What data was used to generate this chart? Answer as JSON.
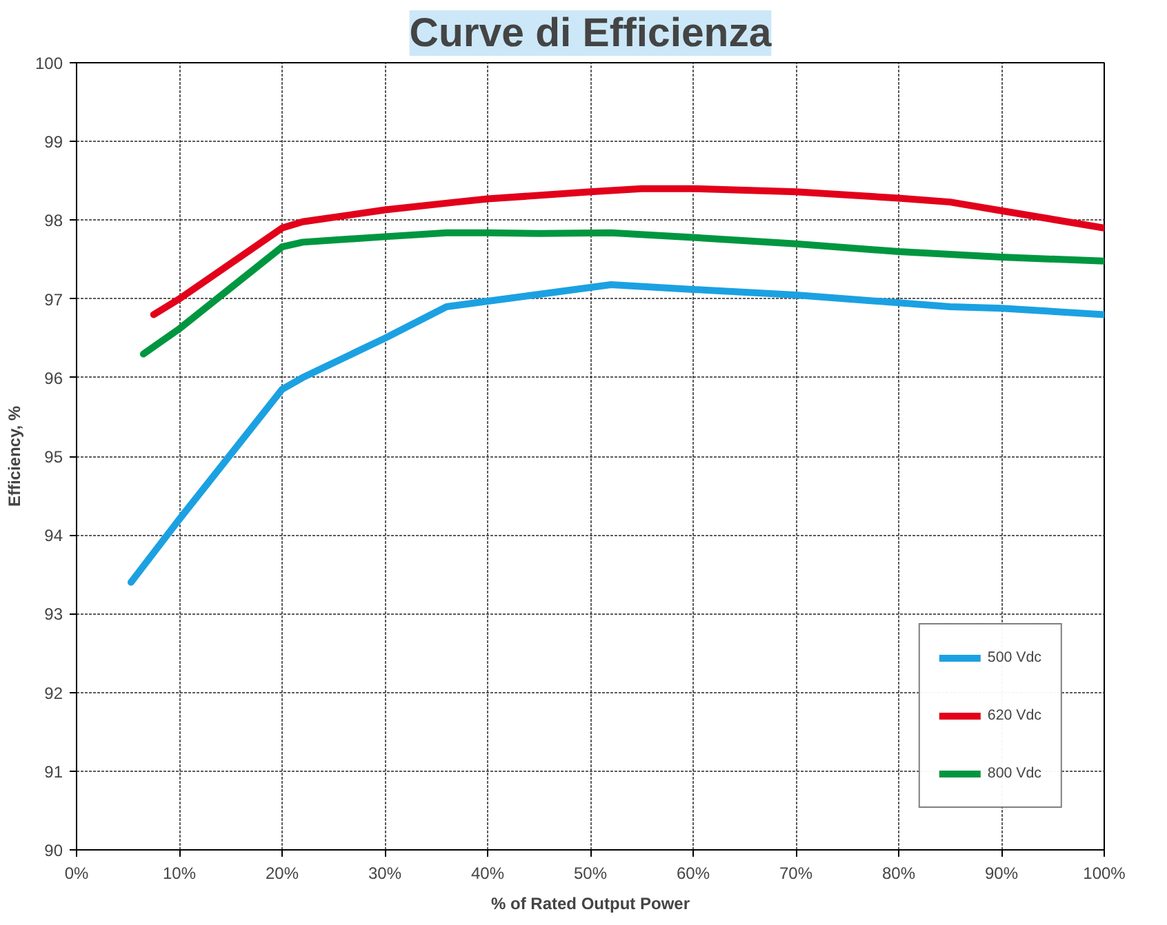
{
  "chart_data": {
    "type": "line",
    "title": "Curve di Efficienza",
    "xlabel": "% of Rated Output Power",
    "ylabel": "Efficiency, %",
    "series": [
      {
        "name": "500 Vdc",
        "color": "#1ba1e2",
        "x": [
          5.3,
          10,
          20,
          22,
          30,
          36,
          40,
          52,
          60,
          70,
          80,
          85,
          90,
          100
        ],
        "values": [
          93.4,
          94.2,
          95.85,
          96.0,
          96.5,
          96.9,
          96.97,
          97.18,
          97.12,
          97.05,
          96.95,
          96.9,
          96.88,
          96.8
        ]
      },
      {
        "name": "620 Vdc",
        "color": "#e2001a",
        "x": [
          7.5,
          10,
          20,
          22,
          30,
          37,
          40,
          50,
          55,
          60,
          70,
          80,
          85,
          90,
          100
        ],
        "values": [
          96.8,
          97.0,
          97.9,
          97.98,
          98.13,
          98.23,
          98.27,
          98.36,
          98.4,
          98.4,
          98.36,
          98.28,
          98.23,
          98.12,
          97.9
        ]
      },
      {
        "name": "800 Vdc",
        "color": "#009640",
        "x": [
          6.5,
          10,
          20,
          22,
          30,
          36,
          40,
          45,
          52,
          60,
          70,
          80,
          90,
          100
        ],
        "values": [
          96.3,
          96.62,
          97.66,
          97.72,
          97.79,
          97.84,
          97.84,
          97.83,
          97.84,
          97.78,
          97.7,
          97.6,
          97.53,
          97.48
        ]
      }
    ],
    "xlim": [
      0,
      100
    ],
    "ylim": [
      90,
      100
    ],
    "xticks": [
      {
        "value": 0,
        "label": "0%"
      },
      {
        "value": 10,
        "label": "10%"
      },
      {
        "value": 20,
        "label": "20%"
      },
      {
        "value": 30,
        "label": "30%"
      },
      {
        "value": 40,
        "label": "40%"
      },
      {
        "value": 50,
        "label": "50%"
      },
      {
        "value": 60,
        "label": "60%"
      },
      {
        "value": 70,
        "label": "70%"
      },
      {
        "value": 80,
        "label": "80%"
      },
      {
        "value": 90,
        "label": "90%"
      },
      {
        "value": 100,
        "label": "100%"
      }
    ],
    "yticks": [
      90,
      91,
      92,
      93,
      94,
      95,
      96,
      97,
      98,
      99,
      100
    ],
    "grid": true,
    "legend": "bottom right",
    "marker": "none",
    "line_style": "solid"
  }
}
